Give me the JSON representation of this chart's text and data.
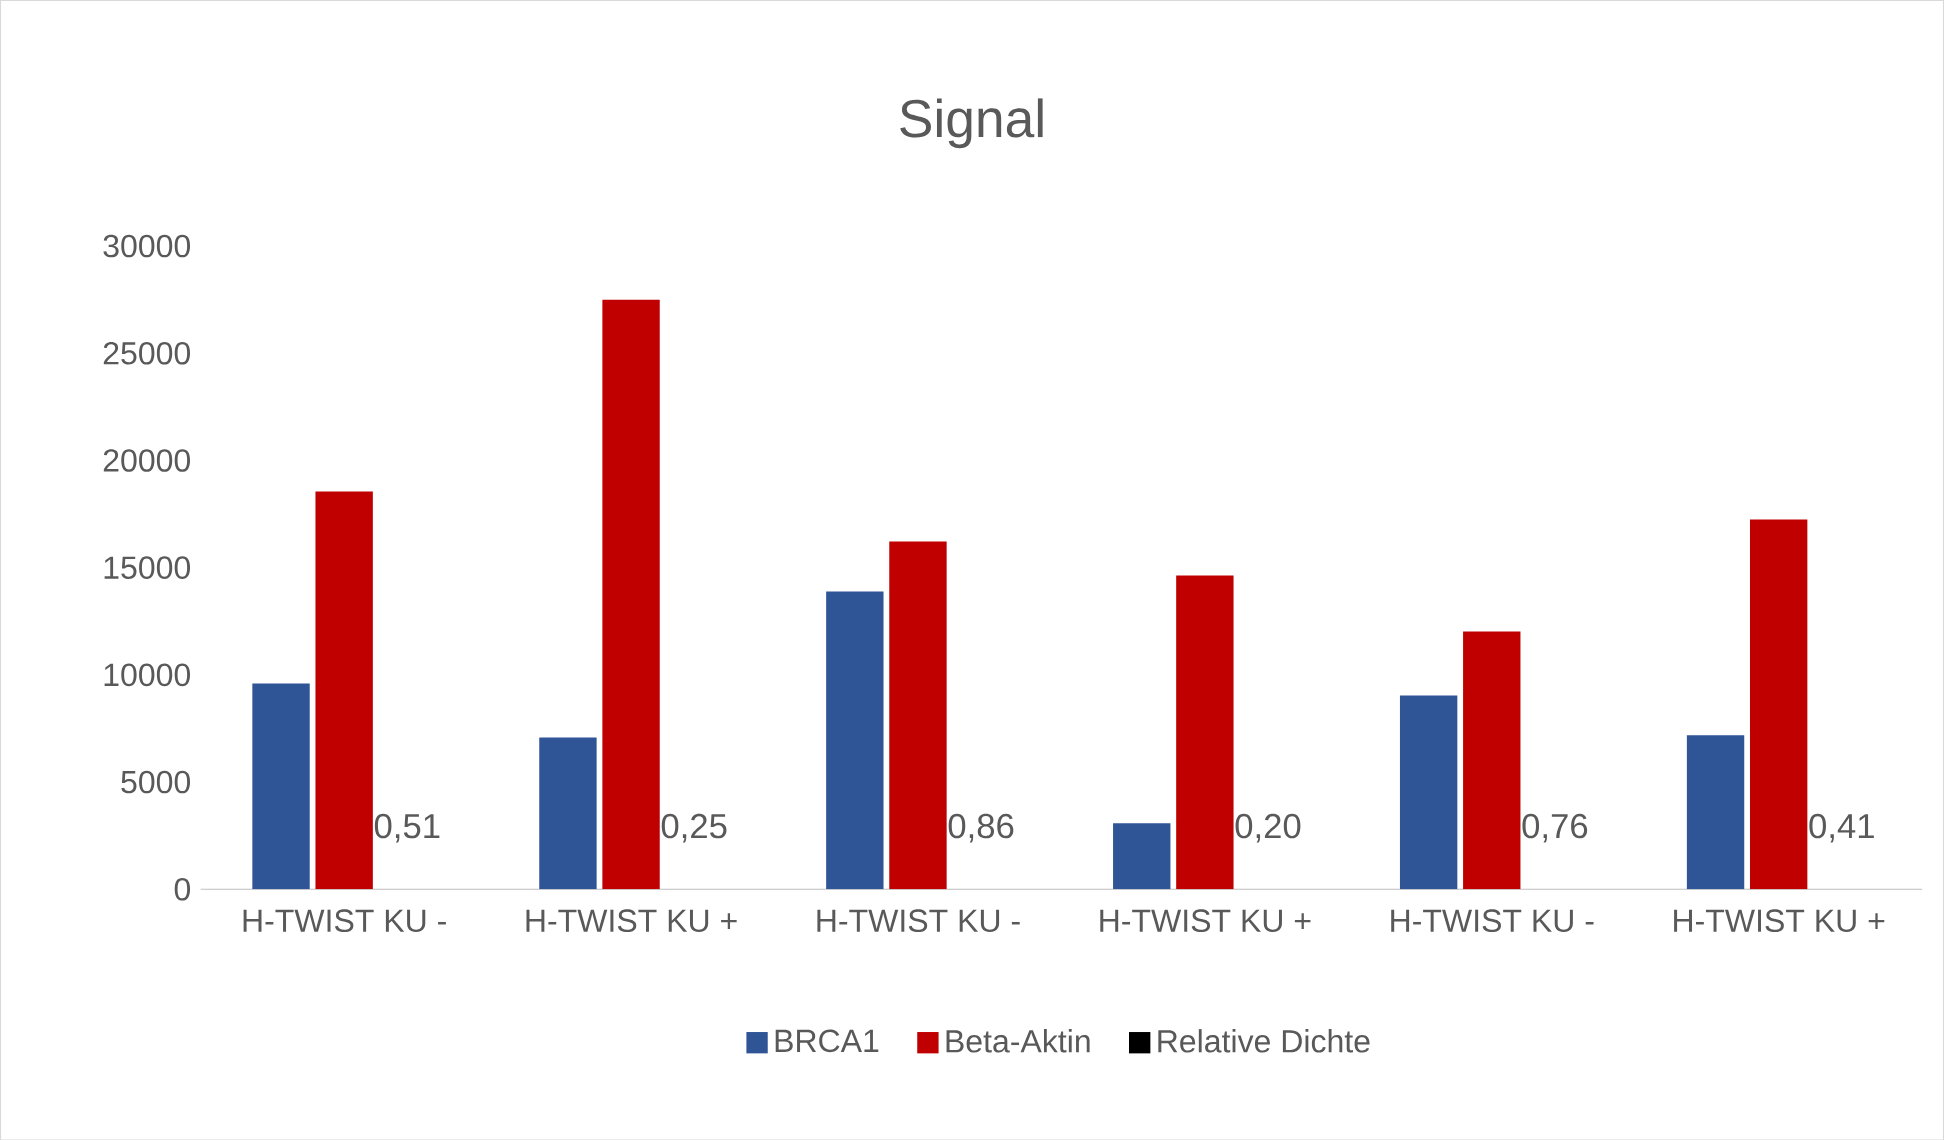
{
  "chart_data": {
    "type": "bar",
    "title": "Signal",
    "categories": [
      "H-TWIST KU -",
      "H-TWIST KU +",
      "H-TWIST KU -",
      "H-TWIST KU +",
      "H-TWIST KU -",
      "H-TWIST KU +"
    ],
    "series": [
      {
        "name": "BRCA1",
        "color": "#2f5597",
        "values": [
          9600,
          7080,
          13890,
          3080,
          9040,
          7180
        ]
      },
      {
        "name": "Beta-Aktin",
        "color": "#c00000",
        "values": [
          18550,
          27490,
          16220,
          14630,
          12020,
          17240
        ]
      },
      {
        "name": "Relative Dichte",
        "color": "#000000",
        "values": [
          0.51,
          0.25,
          0.86,
          0.2,
          0.76,
          0.41
        ],
        "value_labels": [
          "0,51",
          "0,25",
          "0,86",
          "0,20",
          "0,76",
          "0,41"
        ]
      }
    ],
    "ylim": [
      0,
      30000
    ],
    "yticks": [
      0,
      5000,
      10000,
      15000,
      20000,
      25000,
      30000
    ],
    "legend": "bottom"
  }
}
